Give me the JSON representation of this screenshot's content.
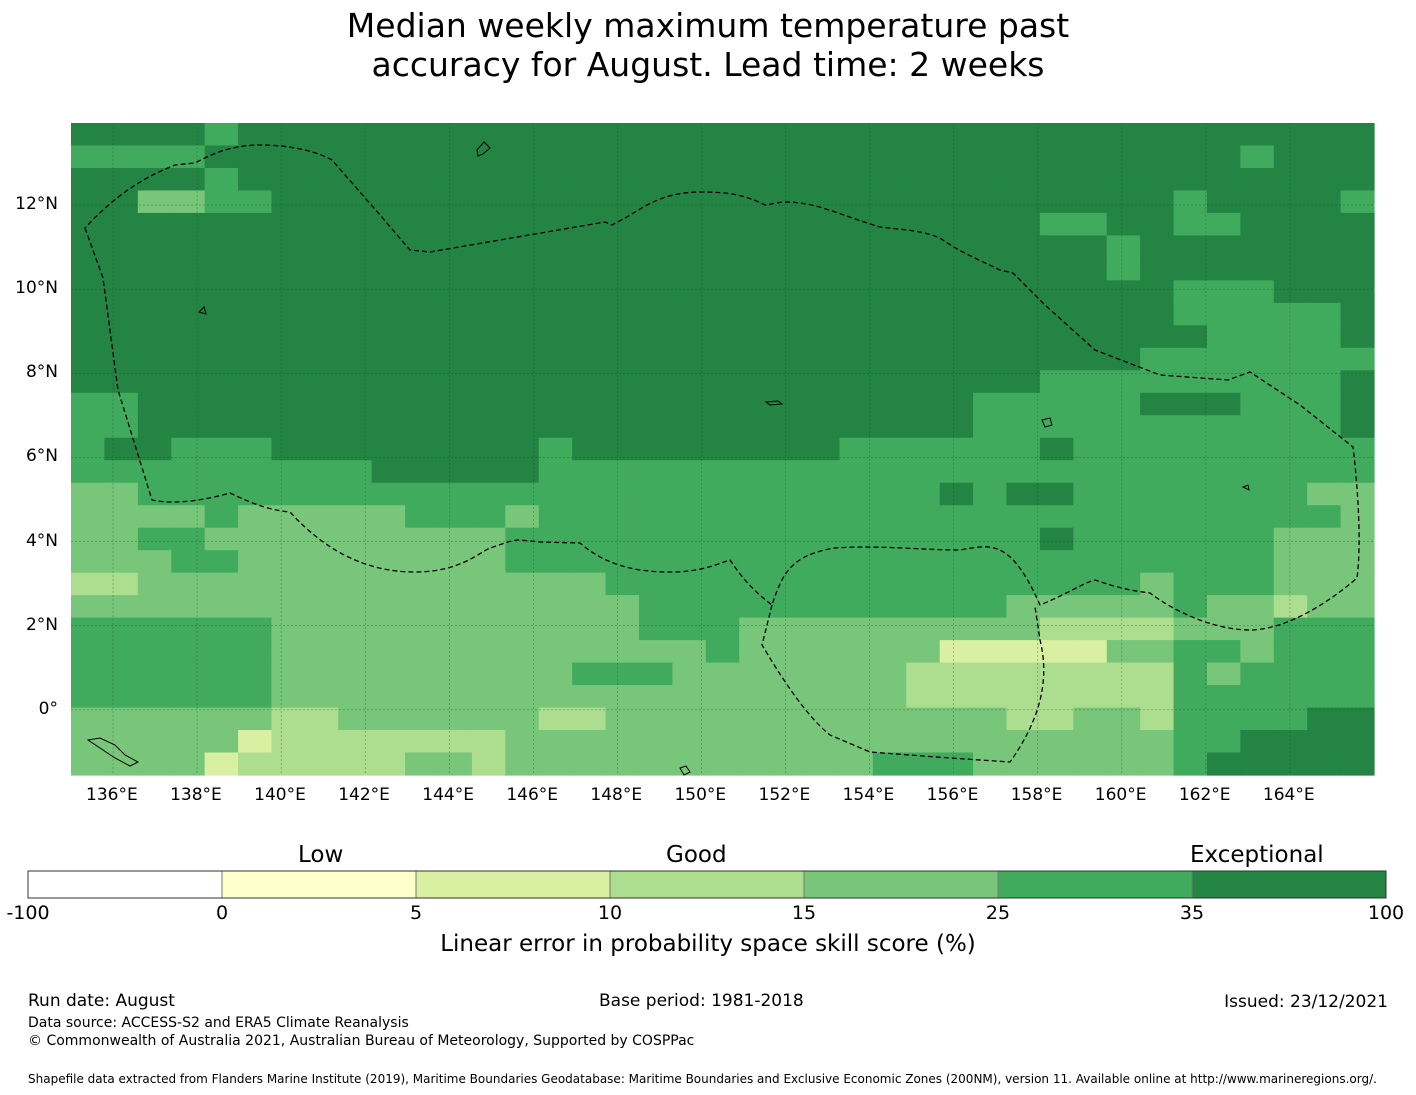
{
  "title_line1": "Median weekly maximum temperature past",
  "title_line2": "accuracy for August. Lead time: 2 weeks",
  "map": {
    "lon_labels": [
      "136°E",
      "138°E",
      "140°E",
      "142°E",
      "144°E",
      "146°E",
      "148°E",
      "150°E",
      "152°E",
      "154°E",
      "156°E",
      "158°E",
      "160°E",
      "162°E",
      "164°E"
    ],
    "lat_labels": [
      "12°N",
      "10°N",
      "8°N",
      "6°N",
      "4°N",
      "2°N",
      "0°"
    ],
    "lon_range": [
      135,
      166
    ],
    "lat_range": [
      -1.55,
      13.95
    ],
    "grid_values_by_row_top_to_bottom": [
      "666656666666666666666666666666666666666",
      "555566666666666666666666666666666665666",
      "666656666666666666666666666666666666666",
      "664455666666666666666666666666666566665",
      "666666666666666666666666666665566556666",
      "666666666666666666666666666666656666666",
      "666666666666666666666666666666656666666",
      "666666666666666666666666666666666555666",
      "666666666666666666666666666666666555556",
      "666666666666666666666666666666666655556",
      "666666666666666666666666666666665555555",
      "666666666666666666666666666665555555556",
      "556666666666666666666666666555556665556",
      "556666666666666666666666666555555555556",
      "566555666666665666666665555556555555555",
      "555555555666665555555555555555555555555",
      "445555555555555555555555556566555555544",
      "444454444455545555555555555555555555554",
      "445544444444455555555555555556555555444",
      "444554444444455555555555555555555555444",
      "334444444444444455555555555555554555444",
      "444444444444444445555555555544444544344",
      "555555444444444445554444444443333444555",
      "555555444444444444454444442222244554555",
      "555555444444444555444444433333333545555",
      "555555444444444444444444433333333555555",
      "444444334444443344444444444433443555566",
      "444442333333344444444444444444444556666",
      "444423333344344444444444555444444566666"
    ]
  },
  "legend": {
    "categories": [
      "Low",
      "Good",
      "Exceptional"
    ],
    "ticks": [
      "-100",
      "0",
      "5",
      "10",
      "15",
      "25",
      "35",
      "100"
    ],
    "colors": [
      "#ffffff",
      "#ffffcc",
      "#d9f0a3",
      "#addd8e",
      "#78c679",
      "#41ab5d",
      "#238443"
    ],
    "label": "Linear error in probability space skill score (%)"
  },
  "footer": {
    "run_date": "Run date: August",
    "base_period": "Base period: 1981-2018",
    "issued": "Issued: 23/12/2021",
    "data_source": "Data source: ACCESS-S2 and ERA5 Climate Reanalysis",
    "copyright": "© Commonwealth of Australia 2021, Australian Bureau of Meteorology, Supported by COSPPac",
    "shapefile": "Shapefile data extracted from Flanders Marine Institute (2019), Maritime Boundaries Geodatabase: Maritime Boundaries and Exclusive Economic Zones (200NM), version 11. Available online at http://www.marineregions.org/."
  }
}
